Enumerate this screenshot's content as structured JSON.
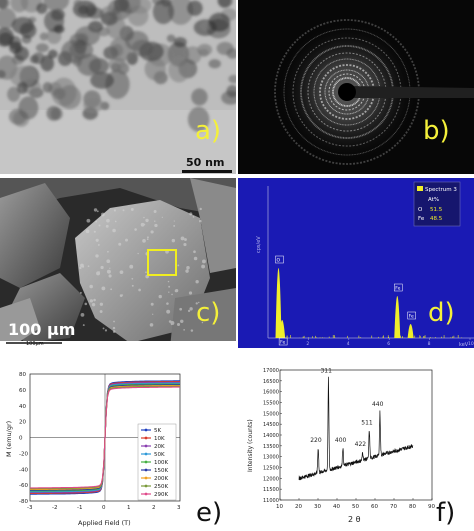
{
  "panels": {
    "a": {
      "label": "a)",
      "scalebar": "50 nm"
    },
    "b": {
      "label": "b)"
    },
    "c": {
      "label": "c)",
      "scalebar": "100 µm",
      "scalebar_small": "100µm"
    },
    "d": {
      "label": "d)"
    },
    "e": {
      "label": "e)"
    },
    "f": {
      "label": "f)"
    }
  },
  "chart_data": [
    {
      "type": "bar",
      "panel": "d",
      "title": "",
      "ylabel": "cps/eV",
      "xlabel": "keV",
      "legend": {
        "entry": "Spectrum 3",
        "header": "At%",
        "rows": [
          {
            "el": "O",
            "val": "51.5"
          },
          {
            "el": "Fe",
            "val": "48.5"
          }
        ],
        "placement": "top-right"
      },
      "peaks": [
        {
          "label": "O",
          "x": 0.52
        },
        {
          "label": "Fe",
          "x": 0.7
        },
        {
          "label": "Fe",
          "x": 6.4
        },
        {
          "label": "Fe",
          "x": 7.06
        }
      ],
      "xticks": [
        "2",
        "4",
        "6",
        "8",
        "10"
      ],
      "xlim": [
        0,
        10
      ],
      "colors": {
        "background": "#1a1ab4",
        "peaks": "#f0ee2a"
      }
    },
    {
      "type": "line",
      "panel": "e",
      "title": "",
      "xlabel": "Applied Field (T)",
      "ylabel": "M (emu/gr)",
      "xlim": [
        -3,
        3
      ],
      "xticks": [
        "-3",
        "-2",
        "-1",
        "0",
        "1",
        "2",
        "3"
      ],
      "yticks": [
        "80",
        "60",
        "40",
        "20",
        "0",
        "-20",
        "-40",
        "-60",
        "-80"
      ],
      "ylim": [
        -80,
        80
      ],
      "legend_placement": "right",
      "series": [
        {
          "name": "5K",
          "color": "#1f3fbf",
          "ms": 72
        },
        {
          "name": "10K",
          "color": "#d83a2a",
          "ms": 71
        },
        {
          "name": "20K",
          "color": "#8a3fb0",
          "ms": 70
        },
        {
          "name": "50K",
          "color": "#2f9ad8",
          "ms": 69
        },
        {
          "name": "100K",
          "color": "#45b043",
          "ms": 68
        },
        {
          "name": "150K",
          "color": "#2a3aa8",
          "ms": 67
        },
        {
          "name": "200K",
          "color": "#f0a020",
          "ms": 66
        },
        {
          "name": "250K",
          "color": "#7a9a3a",
          "ms": 65
        },
        {
          "name": "290K",
          "color": "#e04a8a",
          "ms": 64
        }
      ]
    },
    {
      "type": "line",
      "panel": "f",
      "title": "",
      "xlabel": "2 θ",
      "ylabel": "Intensity (counts)",
      "xlim": [
        10,
        90
      ],
      "ylim": [
        11000,
        17000
      ],
      "xticks": [
        "10",
        "20",
        "30",
        "40",
        "50",
        "60",
        "70",
        "80",
        "90"
      ],
      "yticks": [
        "11000",
        "11500",
        "12000",
        "12500",
        "13000",
        "13500",
        "14000",
        "14500",
        "15000",
        "15500",
        "16000",
        "16500",
        "17000"
      ],
      "peaks": [
        {
          "label": "220",
          "x": 30.1,
          "y": 13550
        },
        {
          "label": "311",
          "x": 35.5,
          "y": 16750
        },
        {
          "label": "400",
          "x": 43.1,
          "y": 13550
        },
        {
          "label": "422",
          "x": 53.5,
          "y": 13350
        },
        {
          "label": "511",
          "x": 57.0,
          "y": 14350
        },
        {
          "label": "440",
          "x": 62.6,
          "y": 15200
        }
      ]
    }
  ]
}
